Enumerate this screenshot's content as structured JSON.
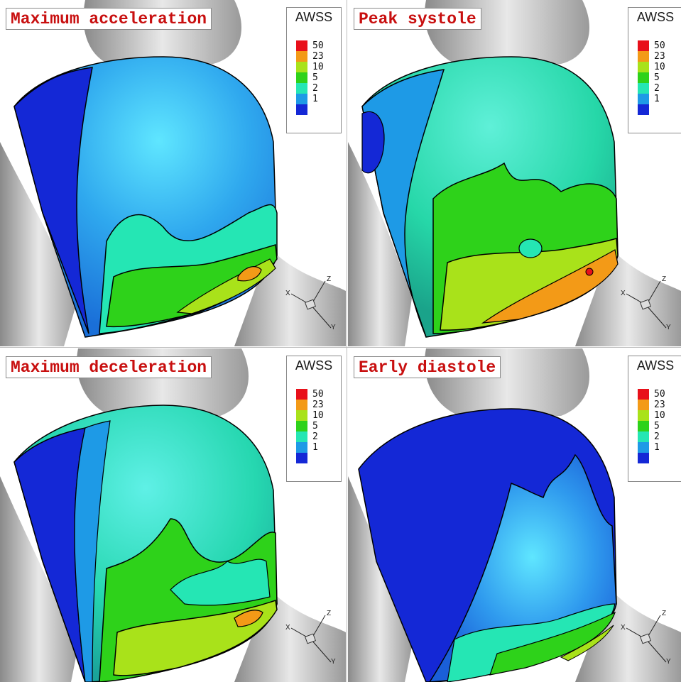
{
  "legend_title": "AWSS",
  "legend_labels": [
    "50",
    "23",
    "10",
    "5",
    "2",
    "1"
  ],
  "legend_colors": [
    "#e8101a",
    "#f39a17",
    "#a9e21a",
    "#2ed21a",
    "#25e6b4",
    "#1e9ae6",
    "#1428d6"
  ],
  "axes": {
    "x": "X",
    "y": "Y",
    "z": "Z"
  },
  "panels": [
    {
      "title": "Maximum acceleration"
    },
    {
      "title": "Peak systole"
    },
    {
      "title": "Maximum deceleration"
    },
    {
      "title": "Early diastole"
    }
  ]
}
